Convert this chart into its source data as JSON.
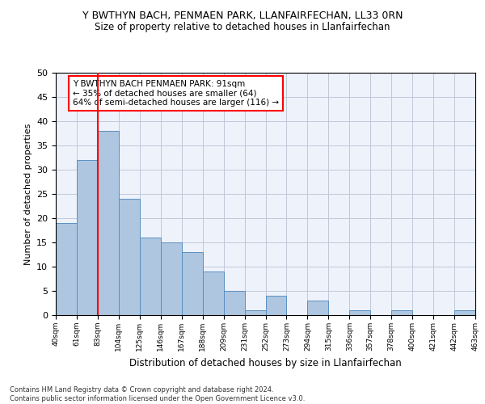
{
  "title": "Y BWTHYN BACH, PENMAEN PARK, LLANFAIRFECHAN, LL33 0RN",
  "subtitle": "Size of property relative to detached houses in Llanfairfechan",
  "xlabel": "Distribution of detached houses by size in Llanfairfechan",
  "ylabel": "Number of detached properties",
  "bar_values": [
    19,
    32,
    38,
    24,
    16,
    15,
    13,
    9,
    5,
    1,
    4,
    0,
    3,
    0,
    1,
    0,
    1,
    0,
    0,
    1
  ],
  "bin_labels": [
    "40sqm",
    "61sqm",
    "83sqm",
    "104sqm",
    "125sqm",
    "146sqm",
    "167sqm",
    "188sqm",
    "209sqm",
    "231sqm",
    "252sqm",
    "273sqm",
    "294sqm",
    "315sqm",
    "336sqm",
    "357sqm",
    "378sqm",
    "400sqm",
    "421sqm",
    "442sqm",
    "463sqm"
  ],
  "bar_color": "#aec6e0",
  "bar_edge_color": "#5a8fc0",
  "vline_x": 2,
  "vline_color": "red",
  "annotation_text": "Y BWTHYN BACH PENMAEN PARK: 91sqm\n← 35% of detached houses are smaller (64)\n64% of semi-detached houses are larger (116) →",
  "annotation_box_color": "white",
  "annotation_box_edge_color": "red",
  "ylim": [
    0,
    50
  ],
  "yticks": [
    0,
    5,
    10,
    15,
    20,
    25,
    30,
    35,
    40,
    45,
    50
  ],
  "footnote": "Contains HM Land Registry data © Crown copyright and database right 2024.\nContains public sector information licensed under the Open Government Licence v3.0.",
  "bg_color": "#eef2fb",
  "grid_color": "#c0c8d8"
}
